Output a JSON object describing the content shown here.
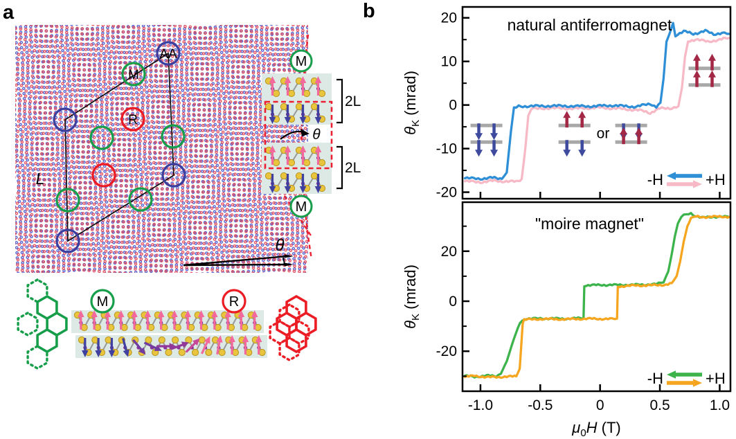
{
  "figure": {
    "panel_a_label": "a",
    "panel_b_label": "b"
  },
  "panel_a": {
    "lattice": {
      "aa_site": "AA",
      "m_site": "M",
      "r_site": "R",
      "moire_length": "L",
      "twist_angle": "θ"
    },
    "stack_inset": {
      "top_site": "M",
      "bottom_site": "M",
      "bilayer_top": "2L",
      "bilayer_bottom": "2L",
      "twist_angle": "θ"
    },
    "stacking_bottom": {
      "m_site": "M",
      "r_site": "R"
    }
  },
  "colors": {
    "curve_blue": "#2e8fd6",
    "curve_pink": "#f7b9c6",
    "curve_green": "#3cb44b",
    "curve_orange": "#f6a51f",
    "spin_up_red": "#a32845",
    "spin_down_blue": "#3e4a9d",
    "spin_bar_gray": "#a8a8a8",
    "site_green": "#179e4a",
    "site_red": "#ec1c24",
    "site_blue": "#3b3f9e",
    "band_teal": "#dce9e5",
    "atom_yellow": "#e9c53e",
    "atom_edge": "#b8941c",
    "metal_purple": "#8a2f97",
    "arrow_pink": "#f2699c",
    "arrow_indigo": "#4040a0",
    "dashed_red": "#ec2030",
    "frame_black": "#000000"
  },
  "chart_data": [
    {
      "type": "line",
      "title": "natural antiferromagnet",
      "ylabel": {
        "sym": "θ",
        "sub": "K",
        "unit": " (mrad)"
      },
      "xlabel": null,
      "xlim": [
        -1.15,
        1.09
      ],
      "ylim": [
        -21.5,
        22.5
      ],
      "grid": false,
      "legend_position": "lower right",
      "yticks": [
        {
          "v": 20,
          "label": "20"
        },
        {
          "v": 10,
          "label": "10"
        },
        {
          "v": 0,
          "label": "0"
        },
        {
          "v": -10,
          "label": "-10"
        },
        {
          "v": -20,
          "label": "-20"
        }
      ],
      "yticks_minor": [
        15,
        5,
        -5,
        -15
      ],
      "xticks": [
        {
          "v": -1.0,
          "label": ""
        },
        {
          "v": -0.5,
          "label": ""
        },
        {
          "v": 0,
          "label": ""
        },
        {
          "v": 0.5,
          "label": ""
        },
        {
          "v": 1.0,
          "label": ""
        }
      ],
      "legend": {
        "neg_label": "-H",
        "pos_label": "+H",
        "neg_color": "#2e8fd6",
        "pos_color": "#f7b9c6"
      },
      "series": [
        {
          "name": "+H sweep",
          "color": "#f7b9c6",
          "points": [
            [
              -1.13,
              -17.5
            ],
            [
              -1.0,
              -17.7
            ],
            [
              -0.9,
              -17.4
            ],
            [
              -0.7,
              -17.6
            ],
            [
              -0.655,
              -17.0
            ],
            [
              -0.625,
              -10
            ],
            [
              -0.6,
              -2.5
            ],
            [
              -0.575,
              -0.9
            ],
            [
              -0.45,
              -0.7
            ],
            [
              -0.2,
              -0.8
            ],
            [
              0.0,
              -0.6
            ],
            [
              0.2,
              -0.9
            ],
            [
              0.35,
              -1.3
            ],
            [
              0.42,
              -1.8
            ],
            [
              0.5,
              -0.8
            ],
            [
              0.6,
              -0.7
            ],
            [
              0.655,
              -0.3
            ],
            [
              0.685,
              4
            ],
            [
              0.71,
              11
            ],
            [
              0.735,
              14.6
            ],
            [
              0.8,
              15.1
            ],
            [
              0.9,
              14.5
            ],
            [
              1.0,
              15.0
            ],
            [
              1.08,
              15.4
            ]
          ]
        },
        {
          "name": "-H sweep",
          "color": "#2e8fd6",
          "points": [
            [
              -1.13,
              -16.8
            ],
            [
              -1.0,
              -16.9
            ],
            [
              -0.9,
              -16.7
            ],
            [
              -0.82,
              -16.9
            ],
            [
              -0.78,
              -15.5
            ],
            [
              -0.745,
              -6
            ],
            [
              -0.72,
              -0.8
            ],
            [
              -0.68,
              -0.3
            ],
            [
              -0.4,
              -0.2
            ],
            [
              -0.1,
              -0.3
            ],
            [
              0.1,
              -0.1
            ],
            [
              0.3,
              -0.4
            ],
            [
              0.42,
              0.3
            ],
            [
              0.47,
              -0.4
            ],
            [
              0.505,
              0.5
            ],
            [
              0.53,
              6
            ],
            [
              0.555,
              14.5
            ],
            [
              0.58,
              16.3
            ],
            [
              0.61,
              18.8
            ],
            [
              0.63,
              16.0
            ],
            [
              0.7,
              16.9
            ],
            [
              0.78,
              16.3
            ],
            [
              0.88,
              17.0
            ],
            [
              0.95,
              16.2
            ],
            [
              1.02,
              16.6
            ],
            [
              1.08,
              16.3
            ]
          ]
        }
      ],
      "annotations": {
        "or_label": "or",
        "or_x": 0.025,
        "or_y": -7.6,
        "spin_states": [
          {
            "x": -0.95,
            "y": -6.6,
            "top": "down",
            "bottom": "down"
          },
          {
            "x": -0.214,
            "y": -6.6,
            "top": "up",
            "bottom": "down"
          },
          {
            "x": 0.26,
            "y": -6.6,
            "top": "down",
            "bottom": "up"
          },
          {
            "x": 0.873,
            "y": 6.5,
            "top": "up",
            "bottom": "up"
          }
        ]
      }
    },
    {
      "type": "line",
      "title": "\"moire magnet\"",
      "ylabel": {
        "sym": "θ",
        "sub": "K",
        "unit": " (mrad)"
      },
      "xlabel": {
        "mu": "μ",
        "sub": "0",
        "h": "H",
        "unit": " (T)"
      },
      "xlim": [
        -1.15,
        1.09
      ],
      "ylim": [
        -36.0,
        39.6
      ],
      "grid": false,
      "legend_position": "lower right",
      "yticks": [
        {
          "v": 20,
          "label": "20"
        },
        {
          "v": 0,
          "label": "0"
        },
        {
          "v": -20,
          "label": "-20"
        }
      ],
      "yticks_minor": [
        30,
        10,
        -10,
        -30
      ],
      "xticks": [
        {
          "v": -1.0,
          "label": "-1.0"
        },
        {
          "v": -0.5,
          "label": "-0.5"
        },
        {
          "v": 0,
          "label": "0"
        },
        {
          "v": 0.5,
          "label": "0.5"
        },
        {
          "v": 1.0,
          "label": "1.0"
        }
      ],
      "legend": {
        "neg_label": "-H",
        "pos_label": "+H",
        "neg_color": "#3cb44b",
        "pos_color": "#f6a51f"
      },
      "series": [
        {
          "name": "-H sweep",
          "color": "#3cb44b",
          "points": [
            [
              -1.13,
              -29.8
            ],
            [
              -1.05,
              -30.3
            ],
            [
              -0.95,
              -29.7
            ],
            [
              -0.87,
              -30.1
            ],
            [
              -0.83,
              -29
            ],
            [
              -0.78,
              -24
            ],
            [
              -0.72,
              -15
            ],
            [
              -0.67,
              -8.5
            ],
            [
              -0.63,
              -7.1
            ],
            [
              -0.5,
              -6.9
            ],
            [
              -0.3,
              -7.0
            ],
            [
              -0.15,
              -6.8
            ],
            [
              -0.138,
              -6.8
            ],
            [
              -0.132,
              6.3
            ],
            [
              0.0,
              6.5
            ],
            [
              0.2,
              6.5
            ],
            [
              0.35,
              6.6
            ],
            [
              0.47,
              6.8
            ],
            [
              0.53,
              7.5
            ],
            [
              0.57,
              12
            ],
            [
              0.6,
              19
            ],
            [
              0.625,
              26
            ],
            [
              0.65,
              31
            ],
            [
              0.68,
              33.8
            ],
            [
              0.72,
              34.8
            ],
            [
              0.76,
              35.2
            ],
            [
              0.8,
              34.0
            ],
            [
              0.85,
              33.4
            ],
            [
              0.95,
              33.8
            ],
            [
              1.08,
              33.7
            ]
          ]
        },
        {
          "name": "+H sweep",
          "color": "#f6a51f",
          "points": [
            [
              -1.13,
              -30.3
            ],
            [
              -1.05,
              -29.8
            ],
            [
              -0.95,
              -30.4
            ],
            [
              -0.78,
              -30.2
            ],
            [
              -0.7,
              -30.0
            ],
            [
              -0.672,
              -27
            ],
            [
              -0.658,
              -17
            ],
            [
              -0.647,
              -9
            ],
            [
              -0.635,
              -7.4
            ],
            [
              -0.5,
              -7.1
            ],
            [
              -0.3,
              -7.2
            ],
            [
              -0.1,
              -7.0
            ],
            [
              0.1,
              -7.1
            ],
            [
              0.142,
              -7.0
            ],
            [
              0.148,
              5.9
            ],
            [
              0.3,
              6.3
            ],
            [
              0.45,
              6.4
            ],
            [
              0.55,
              6.6
            ],
            [
              0.6,
              7.2
            ],
            [
              0.64,
              10
            ],
            [
              0.67,
              16
            ],
            [
              0.7,
              24
            ],
            [
              0.73,
              30
            ],
            [
              0.76,
              33
            ],
            [
              0.8,
              33.9
            ],
            [
              0.9,
              33.6
            ],
            [
              1.0,
              33.9
            ],
            [
              1.08,
              33.7
            ]
          ]
        }
      ],
      "annotations": {
        "or_label": null,
        "spin_states": []
      }
    }
  ]
}
